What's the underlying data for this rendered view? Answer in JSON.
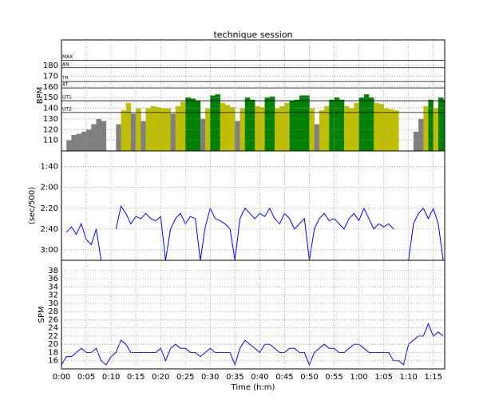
{
  "chart_data": [
    {
      "type": "zoned-area",
      "title": "technique session",
      "ylabel": "BPM",
      "x": [
        0,
        1,
        2,
        3,
        4,
        5,
        6,
        7,
        8,
        9,
        10,
        11,
        12,
        13,
        14,
        15,
        16,
        17,
        18,
        19,
        20,
        21,
        22,
        23,
        24,
        25,
        26,
        27,
        28,
        29,
        30,
        31,
        32,
        33,
        34,
        35,
        36,
        37,
        38,
        39,
        40,
        41,
        42,
        43,
        44,
        45,
        46,
        47,
        48,
        49,
        50,
        51,
        52,
        53,
        54,
        55,
        56,
        57,
        58,
        59,
        60,
        61,
        62,
        63,
        64,
        65,
        66,
        67,
        68,
        69,
        70,
        71,
        72,
        73,
        74,
        75,
        76,
        77
      ],
      "values": [
        null,
        110,
        115,
        116,
        118,
        120,
        125,
        130,
        128,
        null,
        null,
        125,
        138,
        145,
        135,
        140,
        128,
        140,
        142,
        141,
        140,
        140,
        135,
        142,
        146,
        150,
        149,
        147,
        130,
        140,
        152,
        153,
        145,
        143,
        141,
        128,
        140,
        150,
        148,
        142,
        141,
        150,
        151,
        140,
        142,
        145,
        147,
        148,
        152,
        152,
        140,
        125,
        138,
        142,
        148,
        150,
        148,
        142,
        140,
        145,
        150,
        153,
        150,
        145,
        144,
        140,
        139,
        138,
        null,
        null,
        null,
        118,
        130,
        142,
        148,
        140,
        150,
        148
      ],
      "base_color": "#808080",
      "zones": [
        {
          "name": "UT2",
          "value": 136,
          "color": "#bfbf00"
        },
        {
          "name": "UT1",
          "value": 147,
          "color": "#008000"
        },
        {
          "name": "AT",
          "value": 159,
          "color": "#008000"
        },
        {
          "name": "TR",
          "value": 165,
          "color": "#008000"
        },
        {
          "name": "AN",
          "value": 178,
          "color": "#008000"
        },
        {
          "name": "MAX",
          "value": 185,
          "color": "#008000"
        }
      ],
      "xlim": [
        0,
        77.3
      ],
      "ylim": [
        100,
        204
      ],
      "yticks": [
        110,
        120,
        130,
        140,
        150,
        160,
        170,
        180
      ],
      "grid": true
    },
    {
      "type": "line",
      "ylabel": "(sec/500)",
      "color": "#0000ff",
      "inverted": true,
      "x": [
        0,
        1,
        2,
        3,
        4,
        5,
        6,
        7,
        8,
        9,
        10,
        11,
        12,
        13,
        14,
        15,
        16,
        17,
        18,
        19,
        20,
        21,
        22,
        23,
        24,
        25,
        26,
        27,
        28,
        29,
        30,
        31,
        32,
        33,
        34,
        35,
        36,
        37,
        38,
        39,
        40,
        41,
        42,
        43,
        44,
        45,
        46,
        47,
        48,
        49,
        50,
        51,
        52,
        53,
        54,
        55,
        56,
        57,
        58,
        59,
        60,
        61,
        62,
        63,
        64,
        65,
        66,
        67,
        68,
        69,
        70,
        71,
        72,
        73,
        74,
        75,
        76,
        77
      ],
      "values": [
        null,
        163,
        158,
        165,
        155,
        170,
        175,
        160,
        190,
        null,
        null,
        160,
        138,
        145,
        155,
        148,
        150,
        145,
        150,
        152,
        148,
        190,
        160,
        150,
        145,
        155,
        148,
        150,
        190,
        158,
        140,
        150,
        152,
        155,
        160,
        190,
        150,
        140,
        145,
        150,
        145,
        148,
        140,
        150,
        155,
        145,
        150,
        160,
        155,
        150,
        190,
        160,
        150,
        145,
        152,
        150,
        155,
        160,
        150,
        145,
        152,
        140,
        150,
        160,
        155,
        158,
        155,
        160,
        null,
        null,
        190,
        155,
        145,
        140,
        150,
        140,
        155,
        190
      ],
      "xlim": [
        0,
        77.3
      ],
      "ylim": [
        85,
        190
      ],
      "yticks": [
        {
          "value": 100,
          "label": "1:40"
        },
        {
          "value": 120,
          "label": "2:00"
        },
        {
          "value": 140,
          "label": "2:20"
        },
        {
          "value": 160,
          "label": "2:40"
        },
        {
          "value": 180,
          "label": "3:00"
        }
      ],
      "grid": true
    },
    {
      "type": "line",
      "ylabel": "SPM",
      "xlabel": "Time (h:m)",
      "color": "#0000ff",
      "x": [
        0,
        1,
        2,
        3,
        4,
        5,
        6,
        7,
        8,
        9,
        10,
        11,
        12,
        13,
        14,
        15,
        16,
        17,
        18,
        19,
        20,
        21,
        22,
        23,
        24,
        25,
        26,
        27,
        28,
        29,
        30,
        31,
        32,
        33,
        34,
        35,
        36,
        37,
        38,
        39,
        40,
        41,
        42,
        43,
        44,
        45,
        46,
        47,
        48,
        49,
        50,
        51,
        52,
        53,
        54,
        55,
        56,
        57,
        58,
        59,
        60,
        61,
        62,
        63,
        64,
        65,
        66,
        67,
        68,
        69,
        70,
        71,
        72,
        73,
        74,
        75,
        76,
        77
      ],
      "values": [
        15,
        17,
        17,
        18,
        19,
        18,
        18,
        19,
        16,
        15,
        17,
        18,
        21,
        20,
        18,
        18,
        18,
        18,
        18,
        18,
        19,
        16,
        19,
        20,
        19,
        19,
        18,
        18,
        17,
        18,
        19,
        18,
        18,
        18,
        18,
        15,
        19,
        21,
        20,
        19,
        18,
        20,
        20,
        19,
        18,
        18,
        19,
        19,
        18,
        18,
        15,
        18,
        19,
        20,
        19,
        19,
        18,
        18,
        19,
        20,
        20,
        19,
        18,
        18,
        18,
        18,
        18,
        16,
        16,
        15,
        20,
        21,
        22,
        22,
        25,
        22,
        23,
        22
      ],
      "xlim": [
        0,
        77.3
      ],
      "ylim": [
        14,
        40.5
      ],
      "xticks": [
        {
          "value": 0,
          "label": "0:00"
        },
        {
          "value": 5,
          "label": "0:05"
        },
        {
          "value": 10,
          "label": "0:10"
        },
        {
          "value": 15,
          "label": "0:15"
        },
        {
          "value": 20,
          "label": "0:20"
        },
        {
          "value": 25,
          "label": "0:25"
        },
        {
          "value": 30,
          "label": "0:30"
        },
        {
          "value": 35,
          "label": "0:35"
        },
        {
          "value": 40,
          "label": "0:40"
        },
        {
          "value": 45,
          "label": "0:45"
        },
        {
          "value": 50,
          "label": "0:50"
        },
        {
          "value": 55,
          "label": "0:55"
        },
        {
          "value": 60,
          "label": "1:00"
        },
        {
          "value": 65,
          "label": "1:05"
        },
        {
          "value": 70,
          "label": "1:10"
        },
        {
          "value": 75,
          "label": "1:15"
        }
      ],
      "yticks": [
        16,
        18,
        20,
        22,
        24,
        26,
        28,
        30,
        32,
        34,
        36,
        38
      ],
      "grid": true
    }
  ]
}
